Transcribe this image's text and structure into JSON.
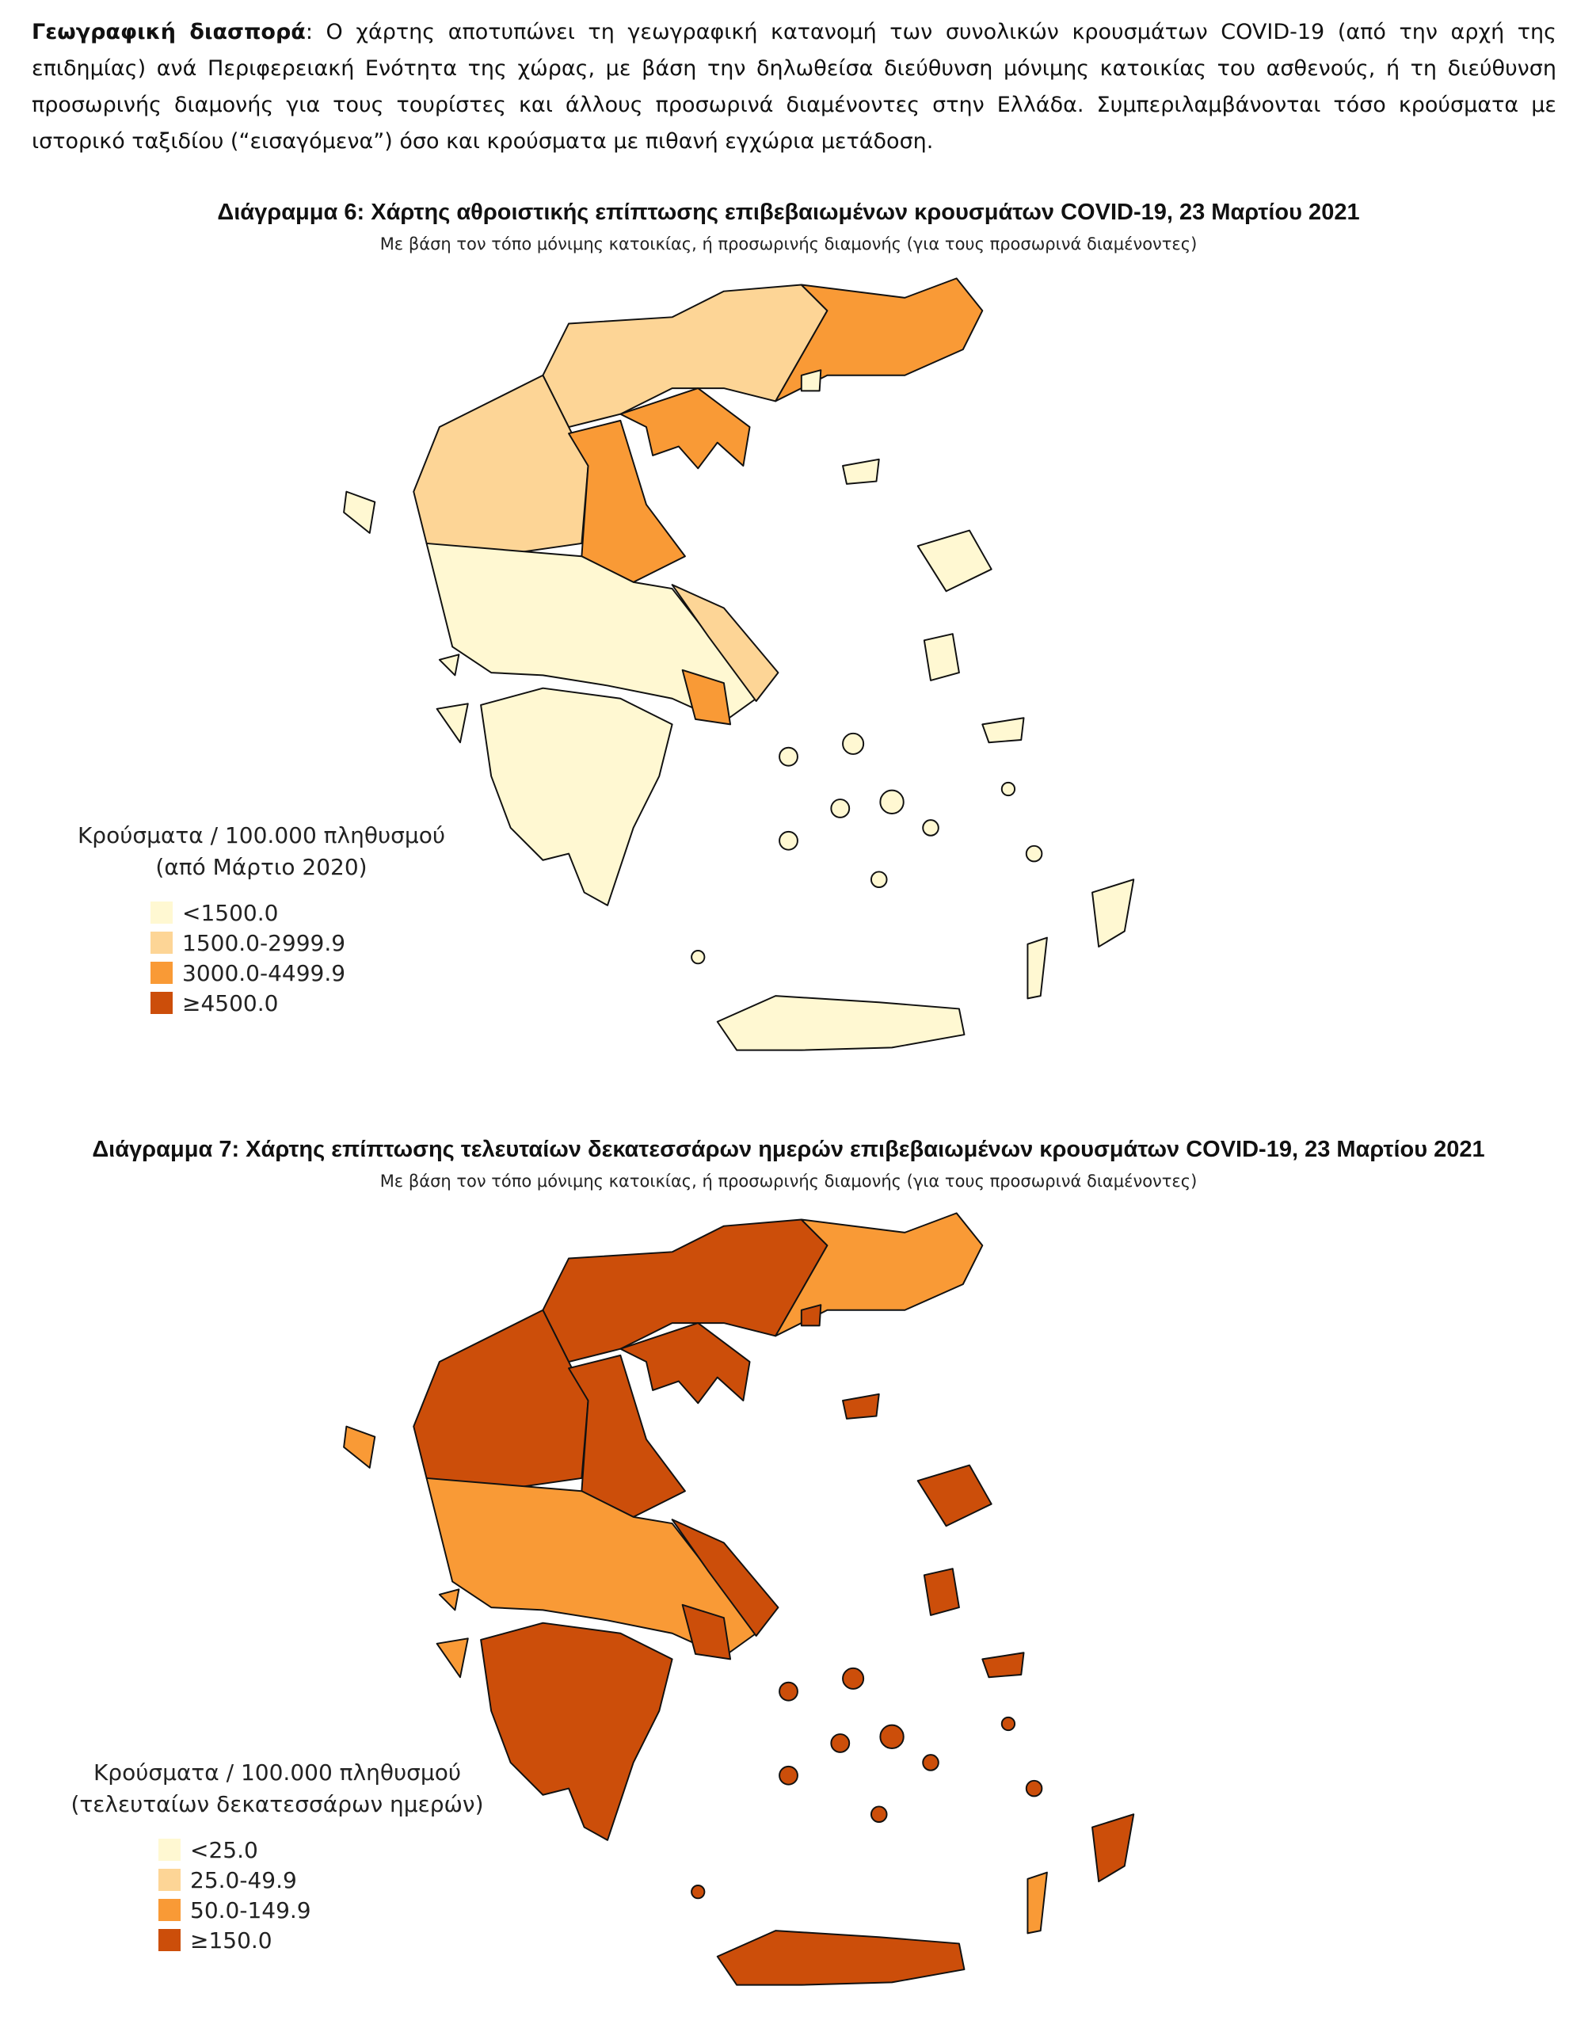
{
  "paragraph": {
    "lead": "Γεωγραφική διασπορά",
    "text": ": Ο χάρτης αποτυπώνει τη γεωγραφική κατανομή των συνολικών κρουσμάτων COVID-19 (από την αρχή της επιδημίας) ανά Περιφερειακή Ενότητα της χώρας, με βάση την δηλωθείσα διεύθυνση μόνιμης κατοικίας του ασθενούς, ή τη διεύθυνση προσωρινής διαμονής για τους τουρίστες και άλλους προσωρινά διαμένοντες στην Ελλάδα. Συμπεριλαμβάνονται τόσο κρούσματα με ιστορικό ταξιδίου (“εισαγόμενα”) όσο και κρούσματα με πιθανή εγχώρια μετάδοση."
  },
  "figures": [
    {
      "title": "Διάγραμμα 6: Χάρτης αθροιστικής επίπτωσης επιβεβαιωμένων κρουσμάτων COVID-19, 23 Μαρτίου 2021",
      "subtitle": "Με βάση τον τόπο μόνιμης κατοικίας, ή προσωρινής διαμονής (για τους προσωρινά διαμένοντες)",
      "legend": {
        "title": "Κρούσματα / 100.000 πληθυσμού",
        "subtitle": "(από Μάρτιο 2020)",
        "items": [
          {
            "label": "<1500.0",
            "color": "#fff8d2"
          },
          {
            "label": "1500.0-2999.9",
            "color": "#fdd596"
          },
          {
            "label": "3000.0-4499.9",
            "color": "#f99a36"
          },
          {
            "label": "≥4500.0",
            "color": "#cc4e0a"
          }
        ]
      }
    },
    {
      "title": "Διάγραμμα 7: Χάρτης επίπτωσης τελευταίων δεκατεσσάρων ημερών επιβεβαιωμένων κρουσμάτων COVID-19, 23 Μαρτίου 2021",
      "subtitle": "Με βάση τον τόπο μόνιμης κατοικίας, ή προσωρινής διαμονής (για τους προσωρινά διαμένοντες)",
      "legend": {
        "title": "Κρούσματα / 100.000 πληθυσμού",
        "subtitle": "(τελευταίων δεκατεσσάρων ημερών)",
        "items": [
          {
            "label": "<25.0",
            "color": "#fff8d2"
          },
          {
            "label": "25.0-49.9",
            "color": "#fdd596"
          },
          {
            "label": "50.0-149.9",
            "color": "#f99a36"
          },
          {
            "label": "≥150.0",
            "color": "#cc4e0a"
          }
        ]
      }
    }
  ]
}
